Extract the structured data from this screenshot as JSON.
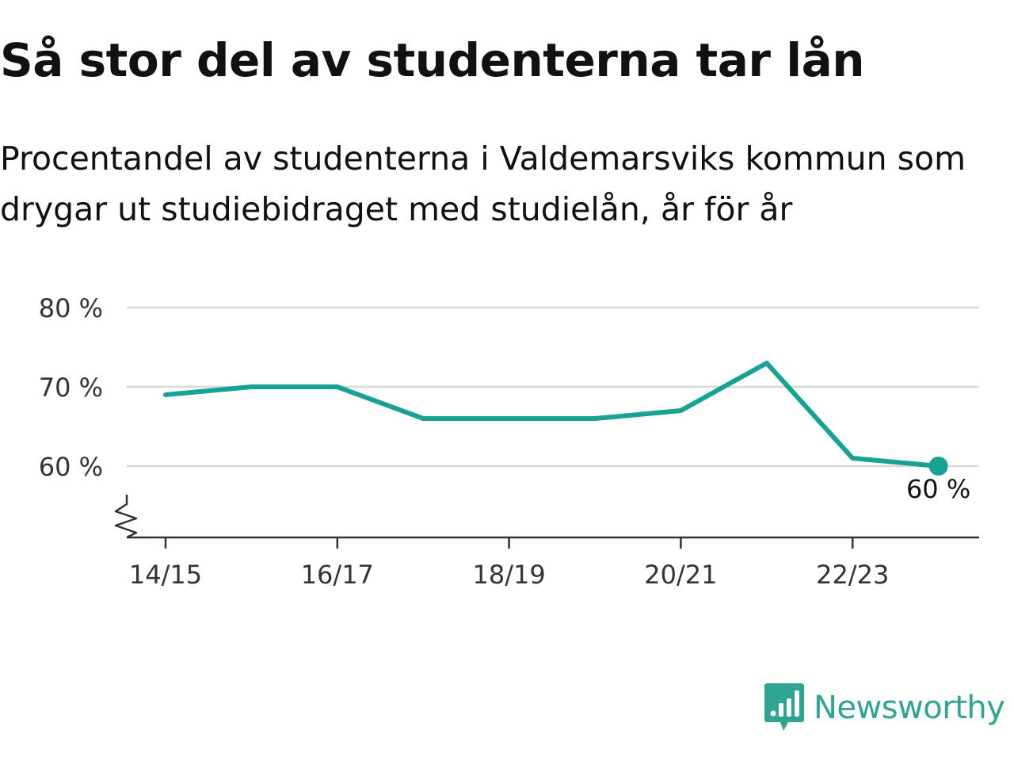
{
  "title": "Så stor del av studenterna tar lån",
  "subtitle": "Procentandel av studenterna i Valdemarsviks kommun som drygar ut studiebidraget med studielån, år för år",
  "brand": {
    "name": "Newsworthy",
    "icon": "newsworthy-logo-icon",
    "color": "#2ea592"
  },
  "chart_data": {
    "type": "line",
    "x": [
      "14/15",
      "15/16",
      "16/17",
      "17/18",
      "18/19",
      "19/20",
      "20/21",
      "21/22",
      "22/23",
      "23/24"
    ],
    "x_tick_labels": [
      "14/15",
      "16/17",
      "18/19",
      "20/21",
      "22/23"
    ],
    "series": [
      {
        "values": [
          69,
          70,
          70,
          66,
          66,
          66,
          67,
          73,
          61,
          60
        ],
        "color": "#16a393"
      }
    ],
    "y_ticks": [
      60,
      70,
      80
    ],
    "y_tick_labels": [
      "60 %",
      "70 %",
      "80 %"
    ],
    "ylim": [
      51,
      80
    ],
    "y_axis_break": true,
    "grid": true,
    "end_label": "60 %"
  }
}
